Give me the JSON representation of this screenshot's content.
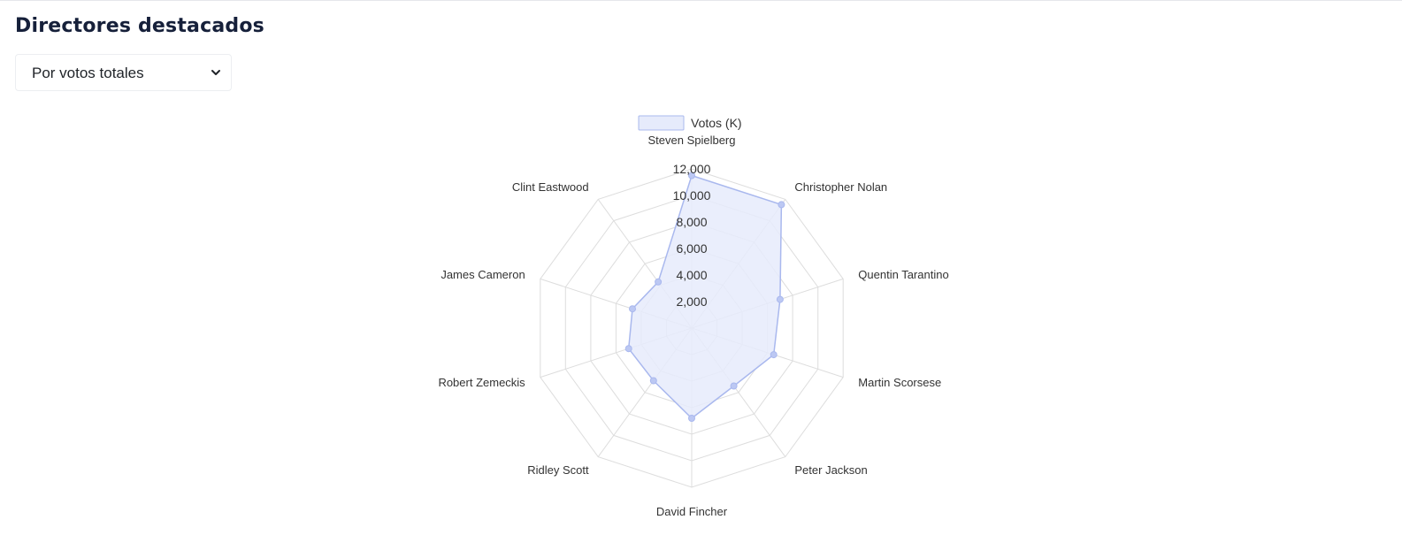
{
  "page": {
    "title": "Directores destacados"
  },
  "filter": {
    "selected": "Por votos totales"
  },
  "colors": {
    "fill": "#e6ebfb",
    "stroke": "#a9b8ee",
    "point": "#bcc8f3",
    "grid": "#dddddd",
    "label": "#333333"
  },
  "chart_data": {
    "type": "radar",
    "legend": "Votos (K)",
    "legend_position": "top",
    "axes": [
      "Steven Spielberg",
      "Christopher Nolan",
      "Quentin Tarantino",
      "Martin Scorsese",
      "Peter Jackson",
      "David Fincher",
      "Ridley Scott",
      "Robert Zemeckis",
      "James Cameron",
      "Clint Eastwood"
    ],
    "series": [
      {
        "name": "Votos (K)",
        "values": [
          11500,
          11500,
          7000,
          6500,
          5400,
          6800,
          4900,
          5000,
          4700,
          4300
        ]
      }
    ],
    "r_range": [
      0,
      12000
    ],
    "r_ticks": [
      "2,000",
      "4,000",
      "6,000",
      "8,000",
      "10,000",
      "12,000"
    ],
    "grid": true
  }
}
